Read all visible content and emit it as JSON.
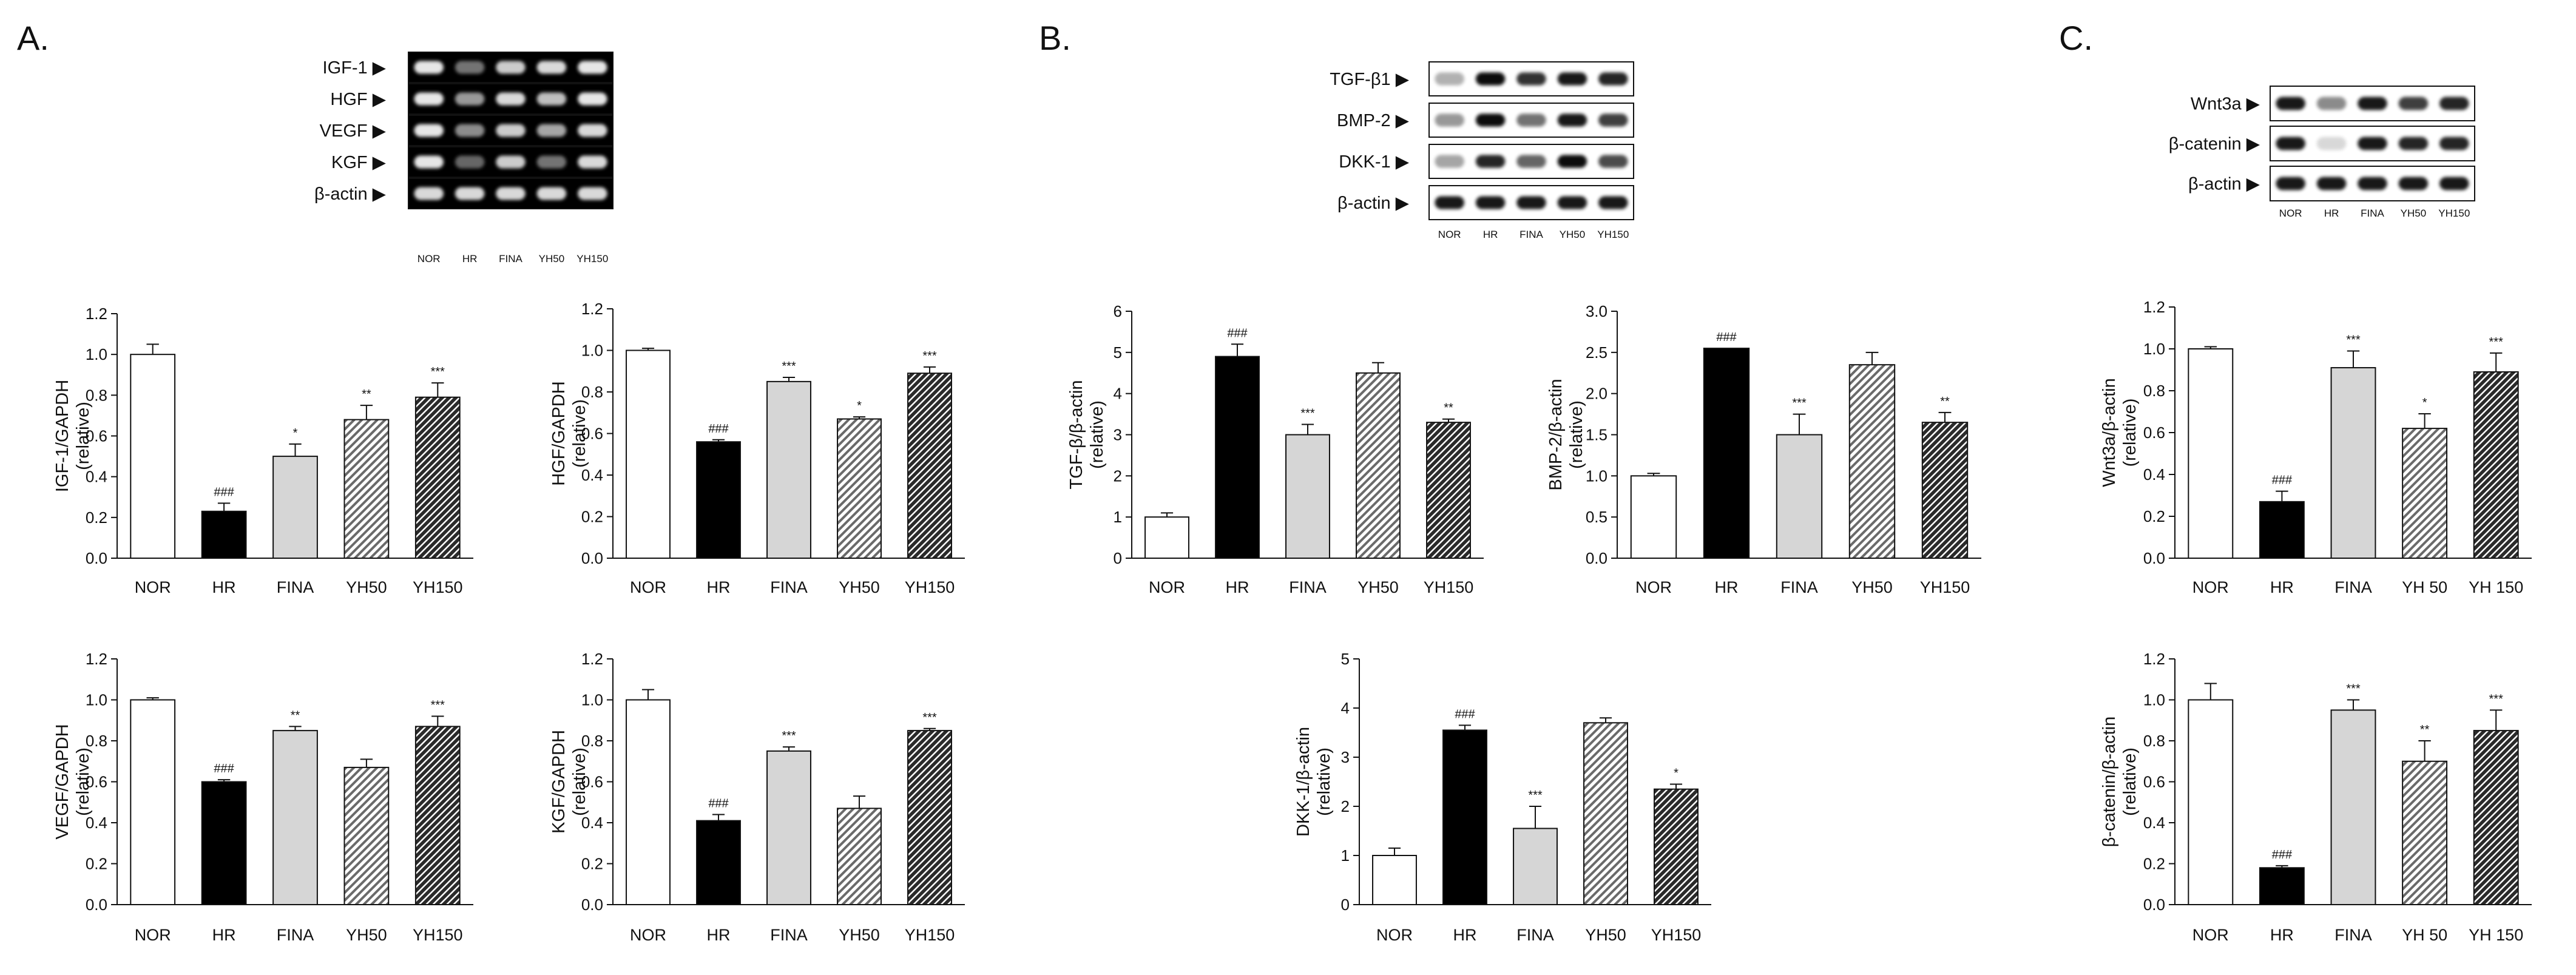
{
  "panels": [
    {
      "id": "A",
      "label": "A."
    },
    {
      "id": "B",
      "label": "B."
    },
    {
      "id": "C",
      "label": "C."
    }
  ],
  "gels": [
    {
      "id": "gelA",
      "panel": "A",
      "style": "dark",
      "rows": [
        {
          "label": "IGF-1 ▶",
          "bands": [
            0.9,
            0.45,
            0.8,
            0.85,
            0.9
          ]
        },
        {
          "label": "HGF ▶",
          "bands": [
            0.9,
            0.6,
            0.85,
            0.75,
            0.9
          ]
        },
        {
          "label": "VEGF ▶",
          "bands": [
            0.9,
            0.55,
            0.8,
            0.65,
            0.85
          ]
        },
        {
          "label": "KGF ▶",
          "bands": [
            0.9,
            0.4,
            0.8,
            0.45,
            0.85
          ]
        },
        {
          "label": "β-actin ▶",
          "bands": [
            0.85,
            0.85,
            0.85,
            0.85,
            0.85
          ]
        }
      ],
      "lanes": [
        "NOR",
        "HR",
        "FINA",
        "YH50",
        "YH150"
      ]
    },
    {
      "id": "blotB",
      "panel": "B",
      "style": "light",
      "rows": [
        {
          "label": "TGF-β1 ▶",
          "bands": [
            0.3,
            0.95,
            0.8,
            0.9,
            0.85
          ]
        },
        {
          "label": "BMP-2 ▶",
          "bands": [
            0.4,
            0.95,
            0.55,
            0.9,
            0.75
          ]
        },
        {
          "label": "DKK-1 ▶",
          "bands": [
            0.35,
            0.85,
            0.6,
            0.95,
            0.7
          ]
        },
        {
          "label": "β-actin ▶",
          "bands": [
            0.9,
            0.9,
            0.9,
            0.9,
            0.9
          ]
        }
      ],
      "lanes": [
        "NOR",
        "HR",
        "FINA",
        "YH50",
        "YH150"
      ]
    },
    {
      "id": "blotC",
      "panel": "C",
      "style": "light",
      "rows": [
        {
          "label": "Wnt3a ▶",
          "bands": [
            0.9,
            0.45,
            0.9,
            0.75,
            0.85
          ]
        },
        {
          "label": "β-catenin ▶",
          "bands": [
            0.9,
            0.15,
            0.9,
            0.85,
            0.85
          ]
        },
        {
          "label": "β-actin ▶",
          "bands": [
            0.9,
            0.9,
            0.9,
            0.9,
            0.9
          ]
        }
      ],
      "lanes": [
        "NOR",
        "HR",
        "FINA",
        "YH50",
        "YH150"
      ]
    }
  ],
  "chart_data": [
    {
      "id": "igf1",
      "type": "bar",
      "panel": "A",
      "ylabel": [
        "IGF-1/GAPDH",
        "(relative)"
      ],
      "categories": [
        "NOR",
        "HR",
        "FINA",
        "YH50",
        "YH150"
      ],
      "values": [
        1.0,
        0.23,
        0.5,
        0.68,
        0.79
      ],
      "errors": [
        0.05,
        0.04,
        0.06,
        0.07,
        0.07
      ],
      "sig": [
        "",
        "###",
        "*",
        "**",
        "***"
      ],
      "ylim": [
        0,
        1.2
      ],
      "yticks": [
        "0.0",
        "0.2",
        "0.4",
        "0.6",
        "0.8",
        "1.0",
        "1.2"
      ]
    },
    {
      "id": "hgf",
      "type": "bar",
      "panel": "A",
      "ylabel": [
        "HGF/GAPDH",
        "(relative)"
      ],
      "categories": [
        "NOR",
        "HR",
        "FINA",
        "YH50",
        "YH150"
      ],
      "values": [
        1.0,
        0.56,
        0.85,
        0.67,
        0.89
      ],
      "errors": [
        0.01,
        0.01,
        0.02,
        0.01,
        0.03
      ],
      "sig": [
        "",
        "###",
        "***",
        "*",
        "***"
      ],
      "ylim": [
        0,
        1.2
      ],
      "yticks": [
        "0.0",
        "0.2",
        "0.4",
        "0.6",
        "0.8",
        "1.0",
        "1.2"
      ]
    },
    {
      "id": "vegf",
      "type": "bar",
      "panel": "A",
      "ylabel": [
        "VEGF/GAPDH",
        "(relative)"
      ],
      "categories": [
        "NOR",
        "HR",
        "FINA",
        "YH50",
        "YH150"
      ],
      "values": [
        1.0,
        0.6,
        0.85,
        0.67,
        0.87
      ],
      "errors": [
        0.01,
        0.01,
        0.02,
        0.04,
        0.05
      ],
      "sig": [
        "",
        "###",
        "**",
        "",
        "***"
      ],
      "ylim": [
        0,
        1.2
      ],
      "yticks": [
        "0.0",
        "0.2",
        "0.4",
        "0.6",
        "0.8",
        "1.0",
        "1.2"
      ]
    },
    {
      "id": "kgf",
      "type": "bar",
      "panel": "A",
      "ylabel": [
        "KGF/GAPDH",
        "(relative)"
      ],
      "categories": [
        "NOR",
        "HR",
        "FINA",
        "YH50",
        "YH150"
      ],
      "values": [
        1.0,
        0.41,
        0.75,
        0.47,
        0.85
      ],
      "errors": [
        0.05,
        0.03,
        0.02,
        0.06,
        0.01
      ],
      "sig": [
        "",
        "###",
        "***",
        "",
        "***"
      ],
      "ylim": [
        0,
        1.2
      ],
      "yticks": [
        "0.0",
        "0.2",
        "0.4",
        "0.6",
        "0.8",
        "1.0",
        "1.2"
      ]
    },
    {
      "id": "tgfb",
      "type": "bar",
      "panel": "B",
      "ylabel": [
        "TGF-β/β-actin",
        "(relative)"
      ],
      "categories": [
        "NOR",
        "HR",
        "FINA",
        "YH50",
        "YH150"
      ],
      "values": [
        1.0,
        4.9,
        3.0,
        4.5,
        3.3
      ],
      "errors": [
        0.1,
        0.3,
        0.25,
        0.25,
        0.08
      ],
      "sig": [
        "",
        "###",
        "***",
        "",
        "**"
      ],
      "ylim": [
        0,
        6
      ],
      "yticks": [
        "0",
        "1",
        "2",
        "3",
        "4",
        "5",
        "6"
      ]
    },
    {
      "id": "bmp2",
      "type": "bar",
      "panel": "B",
      "ylabel": [
        "BMP-2/β-actin",
        "(relative)"
      ],
      "categories": [
        "NOR",
        "HR",
        "FINA",
        "YH50",
        "YH150"
      ],
      "values": [
        1.0,
        2.55,
        1.5,
        2.35,
        1.65
      ],
      "errors": [
        0.03,
        0.0,
        0.25,
        0.15,
        0.12
      ],
      "sig": [
        "",
        "###",
        "***",
        "",
        "**"
      ],
      "ylim": [
        0,
        3.0
      ],
      "yticks": [
        "0.0",
        "0.5",
        "1.0",
        "1.5",
        "2.0",
        "2.5",
        "3.0"
      ]
    },
    {
      "id": "dkk1",
      "type": "bar",
      "panel": "B",
      "ylabel": [
        "DKK-1/β-actin",
        "(relative)"
      ],
      "categories": [
        "NOR",
        "HR",
        "FINA",
        "YH50",
        "YH150"
      ],
      "values": [
        1.0,
        3.55,
        1.55,
        3.7,
        2.35
      ],
      "errors": [
        0.15,
        0.1,
        0.45,
        0.1,
        0.1
      ],
      "sig": [
        "",
        "###",
        "***",
        "",
        "*"
      ],
      "ylim": [
        0,
        5
      ],
      "yticks": [
        "0",
        "1",
        "2",
        "3",
        "4",
        "5"
      ]
    },
    {
      "id": "wnt3a",
      "type": "bar",
      "panel": "C",
      "ylabel": [
        "Wnt3a/β-actin",
        "(relative)"
      ],
      "categories": [
        "NOR",
        "HR",
        "FINA",
        "YH 50",
        "YH 150"
      ],
      "values": [
        1.0,
        0.27,
        0.91,
        0.62,
        0.89
      ],
      "errors": [
        0.01,
        0.05,
        0.08,
        0.07,
        0.09
      ],
      "sig": [
        "",
        "###",
        "***",
        "*",
        "***"
      ],
      "ylim": [
        0,
        1.2
      ],
      "yticks": [
        "0.0",
        "0.2",
        "0.4",
        "0.6",
        "0.8",
        "1.0",
        "1.2"
      ]
    },
    {
      "id": "bcatenin",
      "type": "bar",
      "panel": "C",
      "ylabel": [
        "β-catenin/β-actin",
        "(relative)"
      ],
      "categories": [
        "NOR",
        "HR",
        "FINA",
        "YH 50",
        "YH 150"
      ],
      "values": [
        1.0,
        0.18,
        0.95,
        0.7,
        0.85
      ],
      "errors": [
        0.08,
        0.01,
        0.05,
        0.1,
        0.1
      ],
      "sig": [
        "",
        "###",
        "***",
        "**",
        "***"
      ],
      "ylim": [
        0,
        1.2
      ],
      "yticks": [
        "0.0",
        "0.2",
        "0.4",
        "0.6",
        "0.8",
        "1.0",
        "1.2"
      ]
    }
  ],
  "colors": {
    "NOR": "#ffffff",
    "HR": "#000000",
    "FINA": "#d6d6d6",
    "YH50": "#8a8a8a",
    "YH150": "#4a4a4a",
    "text": "#111111"
  }
}
